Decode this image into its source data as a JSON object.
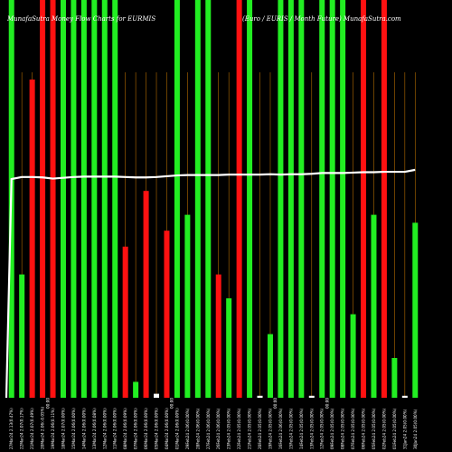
{
  "chart_title_left": "MunafaSutra Money Flow Charts for EURMIS",
  "chart_title_right": "(Euro / EURIS / Month Future) MunafaSutra.com",
  "colors": {
    "background": "#000000",
    "up": "#22ee22",
    "down": "#ff1111",
    "flat": "#ffffff",
    "guide": "#b36b00",
    "line": "#ffffff"
  },
  "chart_data": {
    "type": "bar",
    "ylim": [
      0,
      100
    ],
    "categories": [
      "27Mar24 2.13(0.47%)",
      "22Mar24 2.07(0.17%)",
      "21Mar24 2.07(0.49%)",
      "20Mar24 2.06(-0.05%)",
      "19Mar24 2.06(0.11%)",
      "18Mar24 2.07(0.00%)",
      "15Mar24 2.06(0.00%)",
      "14Mar24 2.06(0.00%)",
      "13Mar24 2.06(0.08%)",
      "12Mar24 2.06(0.00%)",
      "11Mar24 2.06(0.00%)",
      "08Mar24 2.06(0.09%)",
      "07Mar24 2.06(0.00%)",
      "06Mar24 2.06(0.00%)",
      "05Mar24 2.06(0.00%)",
      "04Mar24 2.06(0.00%)",
      "01Mar24 2.06(0.00%)",
      "29Feb24 2.06(0.00%)",
      "28Feb24 2.06(0.00%)",
      "27Feb24 2.06(0.00%)",
      "26Feb24 2.06(0.00%)",
      "23Feb24 2.05(0.00%)",
      "22Feb24 2.05(0.00%)",
      "21Feb24 2.05(0.00%)",
      "20Feb24 2.05(0.00%)",
      "19Feb24 2.05(0.00%)",
      "16Feb24 2.06(0.00%)",
      "15Feb24 2.05(0.00%)",
      "14Feb24 2.05(0.00%)",
      "13Feb24 2.05(0.00%)",
      "12Feb24 2.05(0.00%)",
      "09Feb24 2.05(0.00%)",
      "08Feb24 2.05(0.00%)",
      "07Feb24 2.05(0.00%)",
      "06Feb24 2.05(0.00%)",
      "05Feb24 2.05(0.00%)",
      "02Feb24 2.05(0.00%)",
      "01Feb24 2.05(0.00%)",
      "31Jan24 2.05(0.00%)",
      "30Jan24 2.05(0.00%)"
    ],
    "series": [
      {
        "values": [
          100,
          31,
          80,
          100,
          100,
          100,
          100,
          100,
          100,
          100,
          100,
          38,
          4,
          52,
          1,
          42,
          100,
          46,
          100,
          100,
          31,
          25,
          100,
          100,
          0.5,
          16,
          100,
          100,
          100,
          0.5,
          100,
          100,
          100,
          21,
          100,
          46,
          100,
          10,
          0.5,
          44
        ],
        "bar_colors": [
          "up",
          "up",
          "down",
          "down",
          "down",
          "up",
          "up",
          "up",
          "up",
          "up",
          "up",
          "down",
          "up",
          "down",
          "flat",
          "down",
          "up",
          "up",
          "up",
          "up",
          "down",
          "up",
          "down",
          "up",
          "flat",
          "up",
          "up",
          "up",
          "up",
          "flat",
          "up",
          "up",
          "up",
          "up",
          "down",
          "up",
          "down",
          "up",
          "flat",
          "up"
        ]
      }
    ],
    "line_values": [
      55,
      55.5,
      55.5,
      55.4,
      55.1,
      55.3,
      55.5,
      55.6,
      55.6,
      55.6,
      55.6,
      55.5,
      55.4,
      55.4,
      55.5,
      55.7,
      55.9,
      56,
      56,
      56,
      56,
      56.1,
      56.1,
      56.1,
      56.1,
      56.2,
      56.1,
      56.2,
      56.2,
      56.3,
      56.5,
      56.5,
      56.5,
      56.6,
      56.7,
      56.7,
      56.8,
      56.8,
      56.8,
      57.3
    ],
    "line_first_value": 0,
    "grid": false,
    "separators_after": [
      3,
      15,
      25,
      30
    ]
  }
}
